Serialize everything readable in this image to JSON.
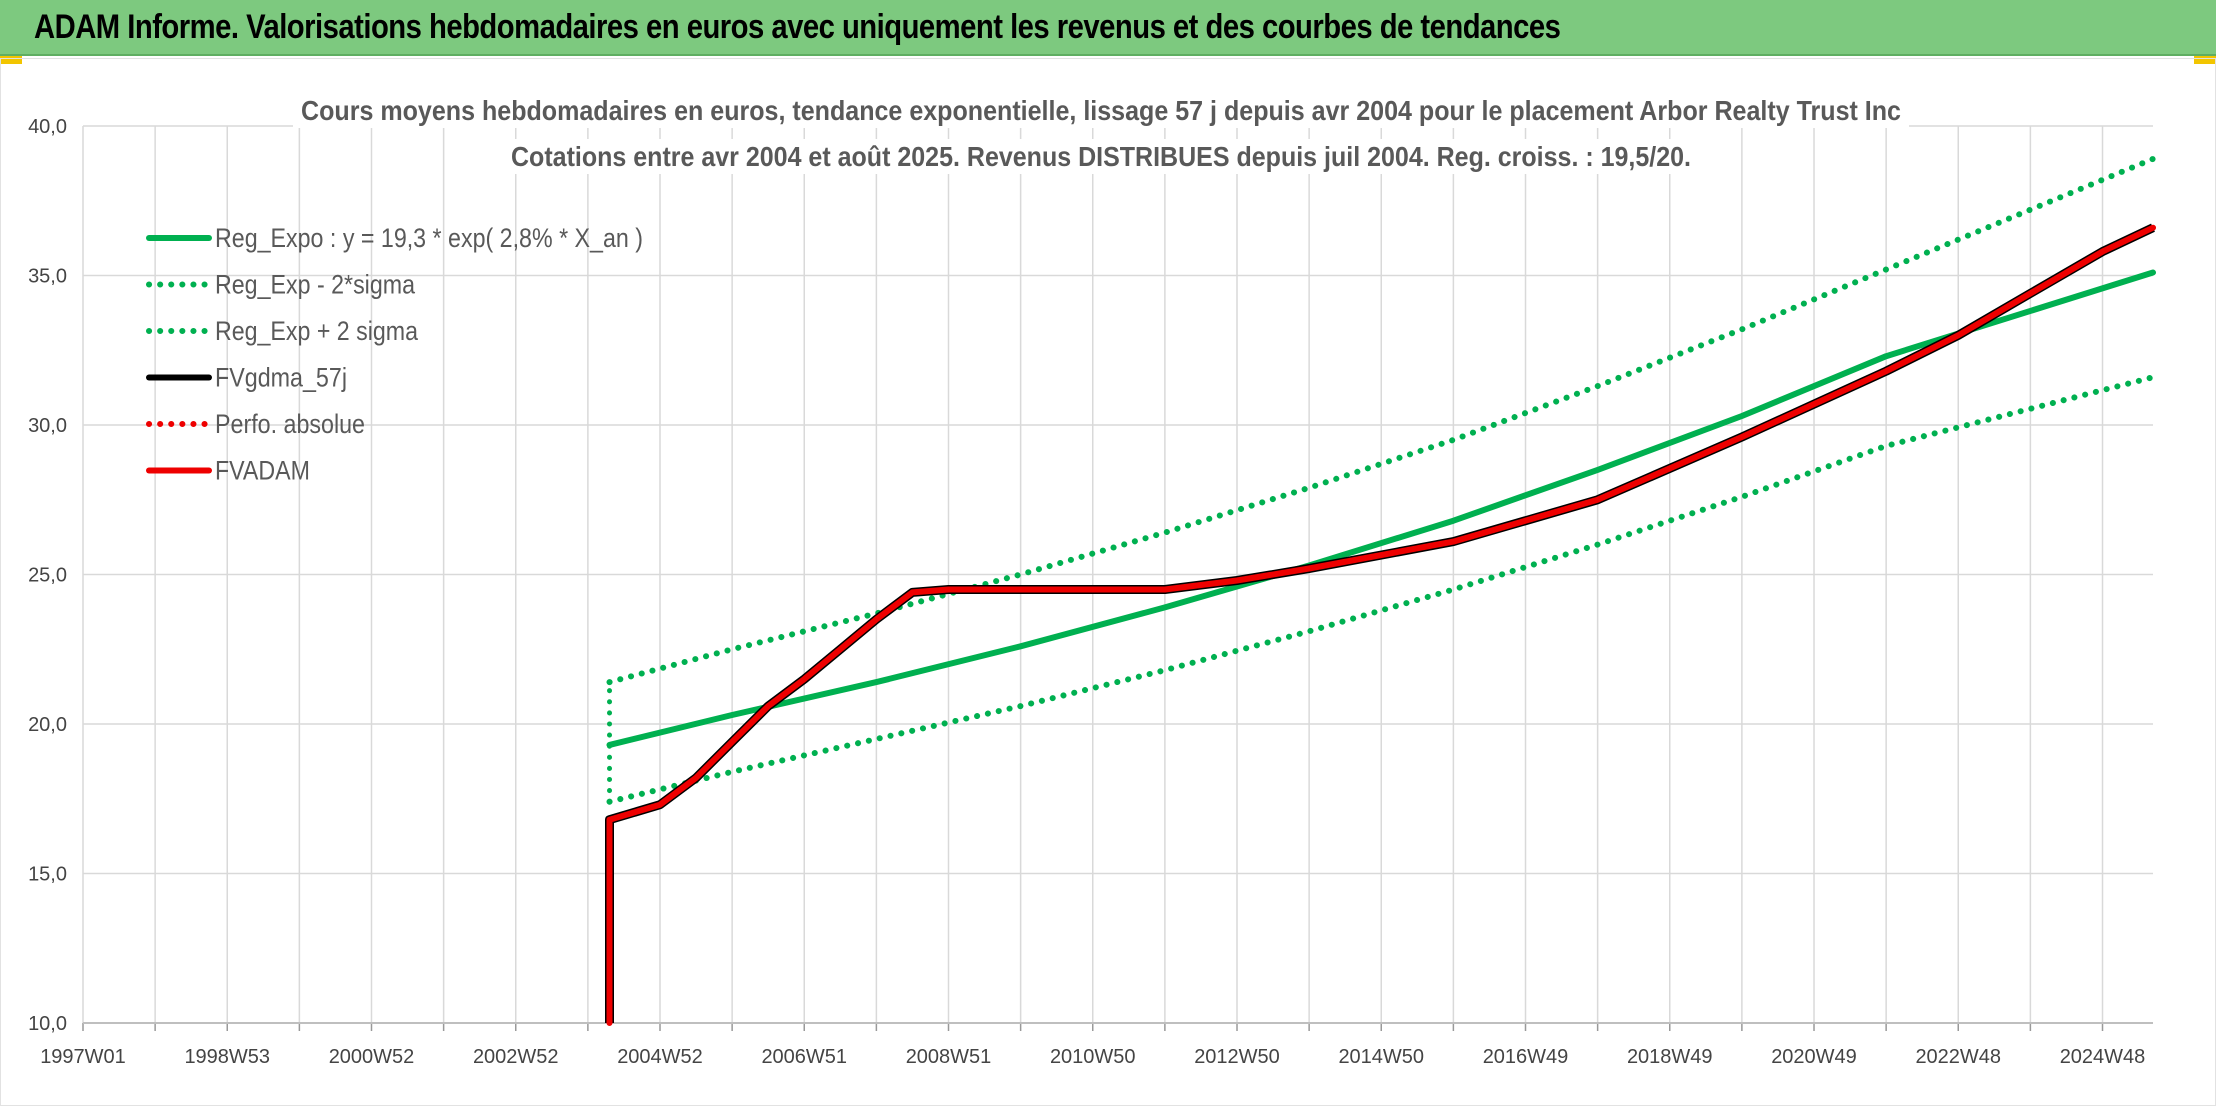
{
  "header": {
    "title": "ADAM Informe. Valorisations hebdomadaires en euros avec uniquement les revenus et des courbes de tendances"
  },
  "colors": {
    "banner": "#7dc97f",
    "green": "#00b050",
    "red": "#ee0000",
    "black": "#000000",
    "grid": "#d9d9d9"
  },
  "chart_data": {
    "type": "line",
    "title_line1": "Cours moyens hebdomadaires en euros, tendance exponentielle, lissage 57 j depuis avr 2004 pour le placement Arbor Realty Trust Inc",
    "title_line2": "Cotations entre avr 2004 et août 2025. Revenus DISTRIBUES depuis juil 2004. Reg. croiss. : 19,5/20.",
    "ylim": [
      10,
      40
    ],
    "yticks": [
      "10,0",
      "15,0",
      "20,0",
      "25,0",
      "30,0",
      "35,0",
      "40,0"
    ],
    "xlim": [
      1997.0,
      2025.7
    ],
    "xticks": [
      {
        "x": 1997.0,
        "label": "1997W01"
      },
      {
        "x": 1999.0,
        "label": "1998W53"
      },
      {
        "x": 2001.0,
        "label": "2000W52"
      },
      {
        "x": 2003.0,
        "label": "2002W52"
      },
      {
        "x": 2005.0,
        "label": "2004W52"
      },
      {
        "x": 2007.0,
        "label": "2006W51"
      },
      {
        "x": 2009.0,
        "label": "2008W51"
      },
      {
        "x": 2011.0,
        "label": "2010W50"
      },
      {
        "x": 2013.0,
        "label": "2012W50"
      },
      {
        "x": 2015.0,
        "label": "2014W50"
      },
      {
        "x": 2017.0,
        "label": "2016W49"
      },
      {
        "x": 2019.0,
        "label": "2018W49"
      },
      {
        "x": 2021.0,
        "label": "2020W49"
      },
      {
        "x": 2023.0,
        "label": "2022W48"
      },
      {
        "x": 2025.0,
        "label": "2024W48"
      }
    ],
    "legend_position": "top-left",
    "legend": [
      {
        "key": "reg",
        "label": "Reg_Expo : y = 19,3 * exp( 2,8% *  X_an )",
        "color": "#00b050",
        "style": "solid"
      },
      {
        "key": "low",
        "label": "Reg_Exp - 2*sigma",
        "color": "#00b050",
        "style": "dotted"
      },
      {
        "key": "high",
        "label": "Reg_Exp + 2 sigma",
        "color": "#00b050",
        "style": "dotted"
      },
      {
        "key": "gdma",
        "label": "FVgdma_57j",
        "color": "#000000",
        "style": "solid"
      },
      {
        "key": "perfo",
        "label": "Perfo. absolue",
        "color": "#ee0000",
        "style": "dotted"
      },
      {
        "key": "fvadam",
        "label": "FVADAM",
        "color": "#ee0000",
        "style": "solid"
      }
    ],
    "series": [
      {
        "key": "reg",
        "x": [
          2004.3,
          2006,
          2008,
          2010,
          2012,
          2014,
          2016,
          2018,
          2020,
          2022,
          2025.7
        ],
        "y": [
          19.3,
          20.3,
          21.4,
          22.6,
          23.9,
          25.3,
          26.8,
          28.5,
          30.3,
          32.3,
          35.1
        ]
      },
      {
        "key": "high",
        "x": [
          2004.3,
          2006,
          2008,
          2010,
          2012,
          2014,
          2016,
          2018,
          2020,
          2022,
          2025.7
        ],
        "y": [
          21.4,
          22.5,
          23.7,
          25.0,
          26.4,
          27.9,
          29.5,
          31.3,
          33.2,
          35.2,
          38.9
        ]
      },
      {
        "key": "low",
        "x": [
          2004.3,
          2006,
          2008,
          2010,
          2012,
          2014,
          2016,
          2018,
          2020,
          2022,
          2025.7
        ],
        "y": [
          17.4,
          18.4,
          19.5,
          20.6,
          21.8,
          23.1,
          24.5,
          26.0,
          27.6,
          29.3,
          31.6
        ]
      },
      {
        "key": "fvadam",
        "x": [
          2004.3,
          2004.3,
          2005.0,
          2005.5,
          2006.0,
          2006.5,
          2007.0,
          2007.5,
          2008.0,
          2008.5,
          2009.0,
          2010.0,
          2011.0,
          2012.0,
          2013.0,
          2014.0,
          2016.0,
          2018.0,
          2020.0,
          2022.0,
          2023.0,
          2024.0,
          2025.0,
          2025.7
        ],
        "y": [
          10.0,
          16.8,
          17.3,
          18.2,
          19.4,
          20.6,
          21.5,
          22.5,
          23.5,
          24.4,
          24.5,
          24.5,
          24.5,
          24.5,
          24.8,
          25.2,
          26.1,
          27.5,
          29.6,
          31.8,
          33.0,
          34.4,
          35.8,
          36.6
        ]
      }
    ]
  }
}
